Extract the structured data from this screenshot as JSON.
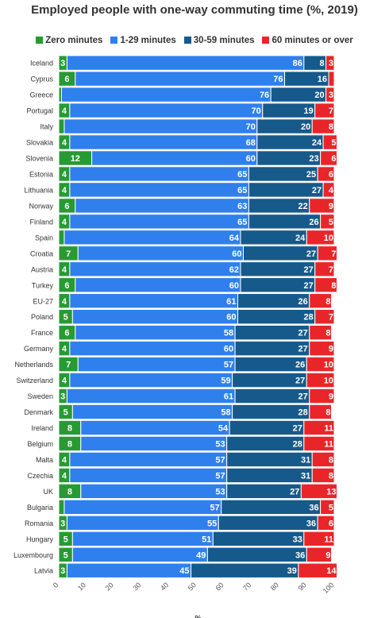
{
  "chart_data": {
    "type": "bar",
    "orientation": "horizontal",
    "stacked": true,
    "title": "Employed people with one-way commuting time (%, 2019)",
    "xlabel": "%",
    "ylabel": "",
    "xlim": [
      0,
      100
    ],
    "xticks": [
      "0",
      "10",
      "20",
      "30",
      "40",
      "50",
      "60",
      "70",
      "80",
      "90",
      "100"
    ],
    "grid": false,
    "legend_position": "top",
    "categories": [
      "Iceland",
      "Cyprus",
      "Greece",
      "Portugal",
      "Italy",
      "Slovakia",
      "Slovenia",
      "Estonia",
      "Lithuania",
      "Norway",
      "Finland",
      "Spain",
      "Croatia",
      "Austria",
      "Turkey",
      "EU-27",
      "Poland",
      "France",
      "Germany",
      "Netherlands",
      "Switzerland",
      "Sweden",
      "Denmark",
      "Ireland",
      "Belgium",
      "Malta",
      "Czechia",
      "UK",
      "Bulgaria",
      "Romania",
      "Hungary",
      "Luxembourg",
      "Latvia"
    ],
    "series": [
      {
        "name": "Zero minutes",
        "color": "#279B33",
        "values": [
          3,
          6,
          1,
          4,
          2,
          4,
          12,
          4,
          4,
          6,
          4,
          2,
          7,
          4,
          6,
          4,
          5,
          6,
          4,
          7,
          4,
          3,
          5,
          8,
          8,
          4,
          4,
          8,
          2,
          3,
          5,
          5,
          3
        ],
        "labels": [
          "3",
          "6",
          "",
          "4",
          "",
          "4",
          "12",
          "4",
          "4",
          "6",
          "4",
          "",
          "7",
          "4",
          "6",
          "4",
          "5",
          "6",
          "4",
          "7",
          "4",
          "3",
          "5",
          "8",
          "8",
          "4",
          "4",
          "8",
          "",
          "3",
          "5",
          "5",
          "3"
        ]
      },
      {
        "name": "1-29 minutes",
        "color": "#2F80ED",
        "values": [
          86,
          76,
          76,
          70,
          70,
          68,
          60,
          65,
          65,
          63,
          65,
          64,
          60,
          62,
          60,
          61,
          60,
          58,
          60,
          57,
          59,
          61,
          58,
          54,
          53,
          57,
          57,
          53,
          57,
          55,
          51,
          49,
          45
        ],
        "labels": [
          "86",
          "76",
          "76",
          "70",
          "70",
          "68",
          "60",
          "65",
          "65",
          "63",
          "65",
          "64",
          "60",
          "62",
          "60",
          "61",
          "60",
          "58",
          "60",
          "57",
          "59",
          "61",
          "58",
          "54",
          "53",
          "57",
          "57",
          "53",
          "57",
          "55",
          "51",
          "49",
          "45"
        ]
      },
      {
        "name": "30-59 minutes",
        "color": "#165A8C",
        "values": [
          8,
          16,
          20,
          19,
          20,
          24,
          23,
          25,
          27,
          22,
          26,
          24,
          27,
          27,
          27,
          26,
          28,
          27,
          27,
          26,
          27,
          27,
          28,
          27,
          28,
          31,
          31,
          27,
          36,
          36,
          33,
          36,
          39
        ],
        "labels": [
          "8",
          "16",
          "20",
          "19",
          "20",
          "24",
          "23",
          "25",
          "27",
          "22",
          "26",
          "24",
          "27",
          "27",
          "27",
          "26",
          "28",
          "27",
          "27",
          "26",
          "27",
          "27",
          "28",
          "27",
          "28",
          "31",
          "31",
          "27",
          "36",
          "36",
          "33",
          "36",
          "39"
        ]
      },
      {
        "name": "60 minutes or over",
        "color": "#E8262A",
        "values": [
          3,
          2,
          3,
          7,
          8,
          5,
          6,
          6,
          4,
          9,
          5,
          10,
          7,
          7,
          8,
          8,
          7,
          8,
          9,
          10,
          10,
          9,
          8,
          11,
          11,
          8,
          8,
          13,
          5,
          6,
          11,
          9,
          14
        ],
        "labels": [
          "3",
          "",
          "3",
          "7",
          "8",
          "5",
          "6",
          "6",
          "4",
          "9",
          "5",
          "10",
          "7",
          "7",
          "8",
          "8",
          "7",
          "8",
          "9",
          "10",
          "10",
          "9",
          "8",
          "11",
          "11",
          "8",
          "8",
          "13",
          "5",
          "6",
          "11",
          "9",
          "14"
        ]
      }
    ]
  }
}
